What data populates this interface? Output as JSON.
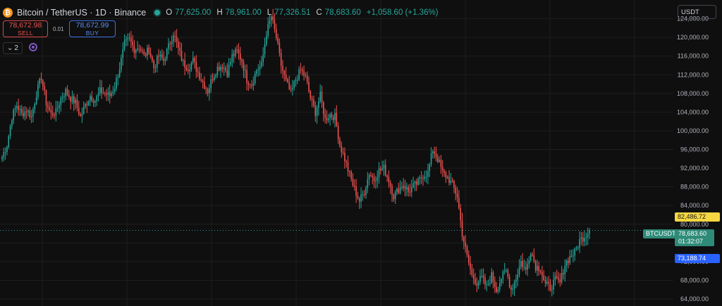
{
  "header": {
    "coin_glyph": "₿",
    "symbol_title": "Bitcoin / TetherUS · 1D · Binance",
    "ohlc": {
      "o_label": "O",
      "o_value": "77,625.00",
      "h_label": "H",
      "h_value": "78,961.00",
      "l_label": "L",
      "l_value": "77,326.51",
      "c_label": "C",
      "c_value": "78,683.60",
      "change": "+1,058.60 (+1.36%)"
    }
  },
  "trade": {
    "sell_price": "78,672.98",
    "sell_label": "SELL",
    "spread": "0.01",
    "buy_price": "78,672.99",
    "buy_label": "BUY"
  },
  "indicators": {
    "count": "2",
    "chevron": "⌄"
  },
  "currency": {
    "selected": "USDT"
  },
  "price_tags": {
    "ask": "82,486.72",
    "symbol": "BTCUSDT",
    "last": "78,683.60",
    "countdown": "01:32:07",
    "bid": "73,188.74"
  },
  "colors": {
    "up": "#26a69a",
    "down": "#ef5350",
    "background": "#0f0f0f",
    "grid": "#1e1e1e"
  },
  "chart_data": {
    "type": "candlestick",
    "title": "Bitcoin / TetherUS · 1D · Binance",
    "ylim": [
      62500,
      128000
    ],
    "yticks": [
      64000,
      68000,
      72000,
      76000,
      80000,
      84000,
      88000,
      92000,
      96000,
      100000,
      104000,
      108000,
      112000,
      116000,
      120000,
      124000
    ],
    "ytick_labels": [
      "64,000.00",
      "68,000.00",
      "72,000.00",
      "76,000.00",
      "80,000.00",
      "84,000.00",
      "88,000.00",
      "92,000.00",
      "96,000.00",
      "100,000.00",
      "104,000.00",
      "108,000.00",
      "112,000.00",
      "116,000.00",
      "120,000.00",
      "124,000.00"
    ],
    "last_price": 78683.6,
    "close_path": [
      94500,
      97000,
      103000,
      105500,
      103500,
      104500,
      103000,
      108000,
      111500,
      106000,
      103500,
      104000,
      107000,
      108500,
      107000,
      106000,
      103000,
      105500,
      107500,
      106500,
      108500,
      108000,
      107500,
      109500,
      113500,
      118500,
      119500,
      117500,
      118000,
      116000,
      117500,
      113500,
      116000,
      115000,
      118000,
      121000,
      117500,
      114500,
      113500,
      115000,
      112500,
      110500,
      108500,
      111500,
      113500,
      114000,
      112500,
      116000,
      117000,
      115000,
      111000,
      110000,
      113000,
      114000,
      121000,
      124500,
      120000,
      114000,
      110500,
      108000,
      111000,
      113000,
      111500,
      107000,
      104000,
      107500,
      102500,
      103500,
      103000,
      97000,
      94000,
      90500,
      87500,
      85000,
      87000,
      91000,
      89500,
      91500,
      92000,
      89500,
      86000,
      87500,
      88500,
      87000,
      88000,
      89000,
      90500,
      91000,
      96000,
      94000,
      91000,
      90000,
      88500,
      86000,
      78000,
      73000,
      69000,
      67500,
      68500,
      66500,
      69000,
      66000,
      68500,
      70000,
      66000,
      68500,
      72000,
      70000,
      74500,
      71000,
      70500,
      67000,
      66500,
      68000,
      67500,
      71500,
      73000,
      74000,
      76500,
      77500,
      78683.6
    ]
  }
}
